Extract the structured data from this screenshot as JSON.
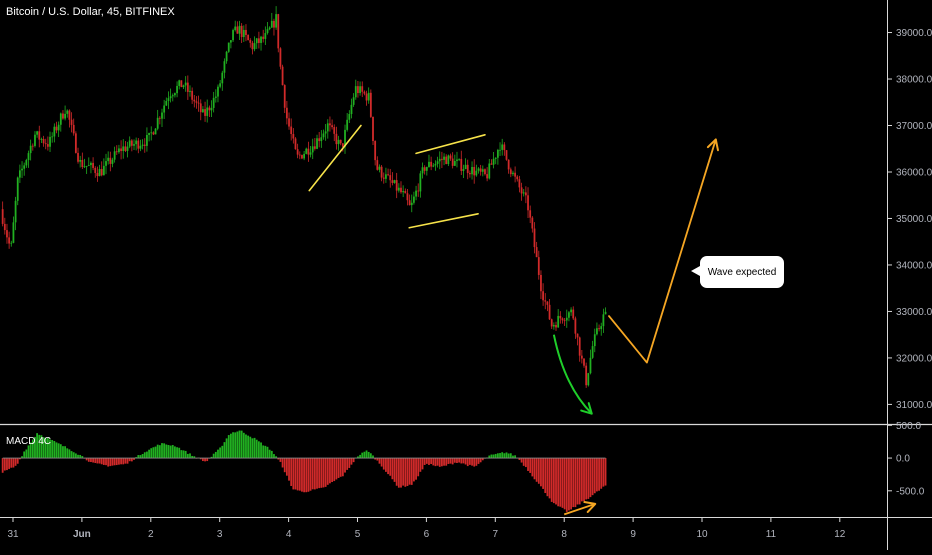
{
  "header": {
    "symbol": "Bitcoin / U.S. Dollar, 45, BITFINEX"
  },
  "annotation": {
    "callout": "Wave expected"
  },
  "chart_data": [
    {
      "type": "candlestick",
      "title": "Bitcoin / U.S. Dollar, 45, BITFINEX",
      "x_ticks": [
        "31",
        "Jun",
        "2",
        "3",
        "4",
        "5",
        "6",
        "7",
        "8",
        "9",
        "10",
        "11",
        "12"
      ],
      "y_ticks": [
        "31000.0",
        "32000.0",
        "33000.0",
        "34000.0",
        "35000.0",
        "36000.0",
        "37000.0",
        "38000.0",
        "39000.0"
      ],
      "ylim": [
        30600,
        39700
      ],
      "price_path": [
        [
          -0.15,
          35200
        ],
        [
          0.0,
          34300
        ],
        [
          0.1,
          35800
        ],
        [
          0.35,
          36800
        ],
        [
          0.55,
          36600
        ],
        [
          0.8,
          37400
        ],
        [
          1.0,
          36200
        ],
        [
          1.3,
          36000
        ],
        [
          1.6,
          36500
        ],
        [
          2.0,
          36700
        ],
        [
          2.3,
          37700
        ],
        [
          2.5,
          37900
        ],
        [
          2.8,
          37200
        ],
        [
          3.0,
          37700
        ],
        [
          3.2,
          38900
        ],
        [
          3.3,
          39100
        ],
        [
          3.5,
          38700
        ],
        [
          3.7,
          38900
        ],
        [
          3.85,
          39300
        ],
        [
          3.9,
          38400
        ],
        [
          4.0,
          37200
        ],
        [
          4.15,
          36300
        ],
        [
          4.4,
          36600
        ],
        [
          4.6,
          37000
        ],
        [
          4.8,
          36500
        ],
        [
          5.0,
          37800
        ],
        [
          5.2,
          37600
        ],
        [
          5.3,
          36100
        ],
        [
          5.5,
          35800
        ],
        [
          5.7,
          35500
        ],
        [
          5.8,
          35200
        ],
        [
          6.0,
          36100
        ],
        [
          6.3,
          36300
        ],
        [
          6.6,
          36100
        ],
        [
          6.9,
          35900
        ],
        [
          7.1,
          36600
        ],
        [
          7.3,
          35900
        ],
        [
          7.5,
          35300
        ],
        [
          7.7,
          33500
        ],
        [
          7.85,
          32700
        ],
        [
          8.0,
          32900
        ],
        [
          8.15,
          33000
        ],
        [
          8.25,
          32200
        ],
        [
          8.35,
          31500
        ],
        [
          8.45,
          32300
        ],
        [
          8.6,
          32900
        ]
      ],
      "overlays": {
        "yellow_line": [
          [
            4.3,
            35600
          ],
          [
            5.05,
            37000
          ]
        ],
        "channel_upper": [
          [
            5.85,
            36400
          ],
          [
            6.85,
            36800
          ]
        ],
        "channel_lower": [
          [
            5.75,
            34800
          ],
          [
            6.75,
            35100
          ]
        ],
        "green_arrow": [
          [
            7.85,
            32500
          ],
          [
            8.0,
            31400
          ],
          [
            8.4,
            30800
          ]
        ],
        "orange_path": [
          [
            8.65,
            32900
          ],
          [
            9.2,
            31900
          ],
          [
            10.2,
            36700
          ]
        ]
      }
    },
    {
      "type": "histogram",
      "title": "MACD 4C",
      "y_ticks": [
        "500.0",
        "0.0",
        "-500.0"
      ],
      "ylim": [
        -900,
        520
      ],
      "shape": [
        [
          -0.15,
          -220
        ],
        [
          0.05,
          -120
        ],
        [
          0.15,
          80
        ],
        [
          0.35,
          380
        ],
        [
          0.6,
          250
        ],
        [
          0.85,
          120
        ],
        [
          1.0,
          30
        ],
        [
          1.15,
          -80
        ],
        [
          1.4,
          -120
        ],
        [
          1.65,
          -90
        ],
        [
          1.9,
          90
        ],
        [
          2.15,
          220
        ],
        [
          2.35,
          190
        ],
        [
          2.6,
          40
        ],
        [
          2.8,
          -60
        ],
        [
          3.0,
          140
        ],
        [
          3.15,
          380
        ],
        [
          3.3,
          420
        ],
        [
          3.5,
          300
        ],
        [
          3.75,
          120
        ],
        [
          3.9,
          -100
        ],
        [
          4.05,
          -460
        ],
        [
          4.2,
          -520
        ],
        [
          4.5,
          -460
        ],
        [
          4.8,
          -260
        ],
        [
          5.0,
          30
        ],
        [
          5.15,
          120
        ],
        [
          5.35,
          -120
        ],
        [
          5.6,
          -450
        ],
        [
          5.8,
          -400
        ],
        [
          6.0,
          -80
        ],
        [
          6.2,
          -140
        ],
        [
          6.45,
          -60
        ],
        [
          6.7,
          -140
        ],
        [
          6.9,
          30
        ],
        [
          7.15,
          90
        ],
        [
          7.3,
          30
        ],
        [
          7.45,
          -150
        ],
        [
          7.65,
          -420
        ],
        [
          7.85,
          -700
        ],
        [
          8.05,
          -820
        ],
        [
          8.25,
          -680
        ],
        [
          8.45,
          -540
        ],
        [
          8.6,
          -420
        ]
      ],
      "overlays": {
        "orange_arrow": [
          [
            8.0,
            -860
          ],
          [
            8.45,
            -700
          ]
        ]
      }
    }
  ],
  "colors": {
    "up": "#21b021",
    "down": "#d12a2a",
    "axis_text": "#b2b5be",
    "yellow": "#f7e34a",
    "orange": "#f5a623",
    "green_arrow": "#1fce2a"
  }
}
